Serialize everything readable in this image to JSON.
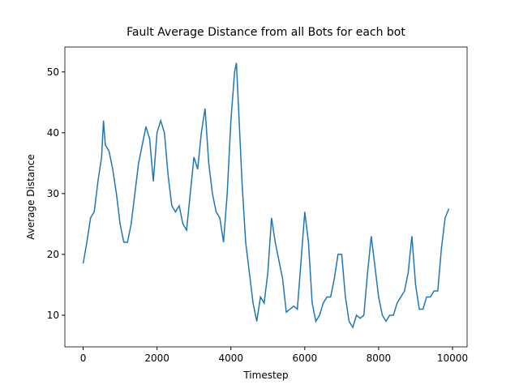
{
  "chart_data": {
    "type": "line",
    "title": "Fault Average Distance from all Bots for each bot",
    "x_label": "Timestep",
    "y_label": "Average Distance",
    "xlim": [
      -495,
      10395
    ],
    "ylim": [
      4.8,
      54.1
    ],
    "xticks": [
      0,
      2000,
      4000,
      6000,
      8000,
      10000
    ],
    "yticks": [
      10,
      20,
      30,
      40,
      50
    ],
    "grid": false,
    "series": [
      {
        "color": "#1f77b4",
        "x": [
          0,
          100,
          200,
          300,
          400,
          500,
          550,
          600,
          700,
          800,
          900,
          1000,
          1100,
          1200,
          1300,
          1400,
          1500,
          1600,
          1700,
          1800,
          1900,
          2000,
          2100,
          2200,
          2300,
          2400,
          2500,
          2600,
          2700,
          2800,
          2900,
          3000,
          3100,
          3200,
          3300,
          3400,
          3500,
          3600,
          3700,
          3800,
          3900,
          4000,
          4100,
          4150,
          4200,
          4300,
          4400,
          4500,
          4600,
          4700,
          4800,
          4900,
          5000,
          5100,
          5200,
          5300,
          5400,
          5500,
          5600,
          5700,
          5800,
          5900,
          6000,
          6100,
          6200,
          6300,
          6400,
          6500,
          6600,
          6700,
          6800,
          6900,
          7000,
          7100,
          7200,
          7300,
          7400,
          7500,
          7600,
          7700,
          7800,
          7900,
          8000,
          8100,
          8200,
          8300,
          8400,
          8500,
          8600,
          8700,
          8800,
          8900,
          9000,
          9100,
          9200,
          9300,
          9400,
          9500,
          9600,
          9700,
          9800,
          9900
        ],
        "values": [
          18.5,
          22,
          26,
          27,
          32,
          36,
          42,
          38,
          37,
          34,
          30,
          25,
          22,
          22,
          25,
          30,
          35,
          38,
          41,
          39,
          32,
          40,
          42,
          40,
          33,
          28,
          27,
          28,
          25,
          24,
          30,
          36,
          34,
          40,
          44,
          35,
          30,
          27,
          26,
          22,
          30,
          42,
          50,
          51.5,
          45,
          32,
          22,
          17,
          12,
          9,
          13,
          12,
          17,
          26,
          22,
          19,
          16,
          10.5,
          11,
          11.5,
          11,
          19,
          27,
          22,
          12,
          9,
          10,
          12,
          13,
          13,
          16,
          20,
          20,
          13,
          9,
          8,
          10,
          9.5,
          10,
          17,
          23,
          18,
          13,
          10,
          9,
          10,
          10,
          12,
          13,
          14,
          17,
          23,
          15,
          11,
          11,
          13,
          13,
          14,
          14,
          21,
          26,
          27.5
        ]
      }
    ]
  }
}
